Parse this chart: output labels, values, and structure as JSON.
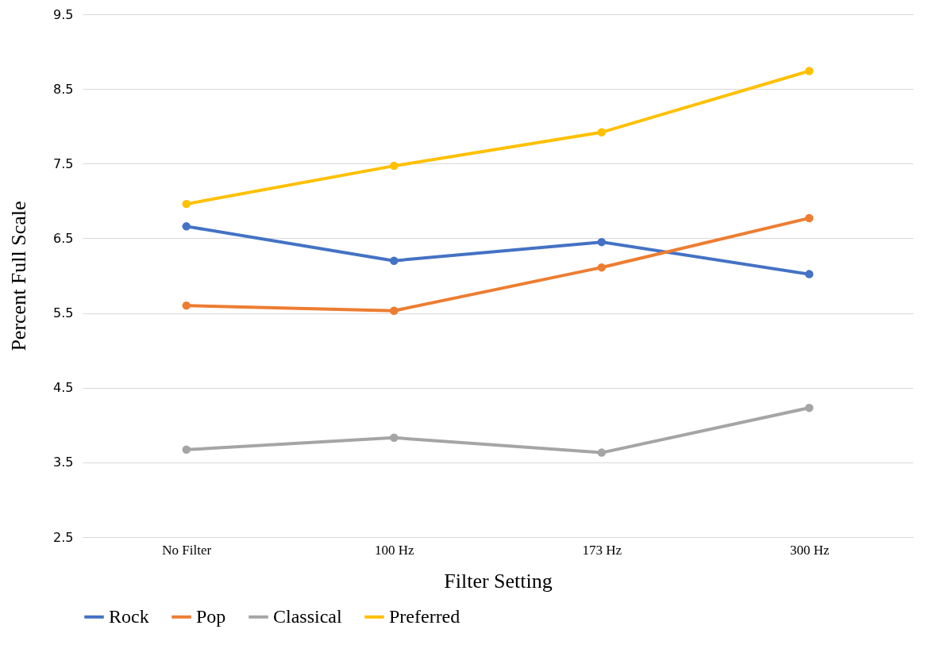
{
  "chart_data": {
    "type": "line",
    "xlabel": "Filter Setting",
    "ylabel": "Percent Full Scale",
    "categories": [
      "No Filter",
      "100 Hz",
      "173 Hz",
      "300 Hz"
    ],
    "series": [
      {
        "name": "Rock",
        "color": "#4472c4",
        "values": [
          6.66,
          6.2,
          6.45,
          6.02
        ]
      },
      {
        "name": "Pop",
        "color": "#ed7d31",
        "values": [
          5.6,
          5.53,
          6.11,
          6.77
        ]
      },
      {
        "name": "Classical",
        "color": "#a5a5a5",
        "values": [
          3.67,
          3.83,
          3.63,
          4.23
        ]
      },
      {
        "name": "Preferred",
        "color": "#ffc000",
        "values": [
          6.96,
          7.47,
          7.92,
          8.74
        ]
      }
    ],
    "ylim": [
      2.5,
      9.5
    ],
    "yticks": [
      2.5,
      3.5,
      4.5,
      5.5,
      6.5,
      7.5,
      8.5,
      9.5
    ],
    "grid": "y",
    "legend": "bottom",
    "marker": "circle",
    "line_style": "solid"
  }
}
